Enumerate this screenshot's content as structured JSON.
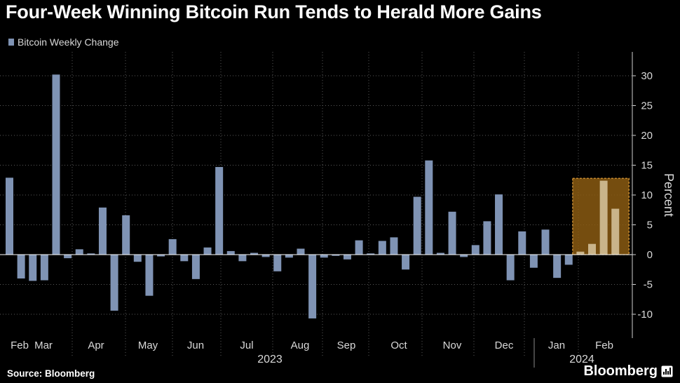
{
  "header": {
    "title": "Four-Week Winning Bitcoin Run Tends to Herald More Gains"
  },
  "footer": {
    "source": "Source: Bloomberg",
    "brand": "Bloomberg"
  },
  "colors": {
    "bar": "#7f93b4",
    "highlight_bar": "#c9b48a",
    "highlight_fill": "#8a5a12",
    "highlight_border": "#e8a23a"
  },
  "chart_data": {
    "type": "bar",
    "title": "Four-Week Winning Bitcoin Run Tends to Herald More Gains",
    "ylabel": "Percent",
    "ylim": [
      -14,
      34
    ],
    "yticks": [
      30,
      25,
      20,
      15,
      10,
      5,
      0,
      -5,
      -10
    ],
    "y_axis_side": "right",
    "grid": true,
    "legend": {
      "placement": "top-left",
      "entries": [
        "Bitcoin Weekly Change"
      ]
    },
    "series": [
      {
        "name": "Bitcoin Weekly Change",
        "values": [
          12.9,
          -4.0,
          -4.4,
          -4.3,
          30.2,
          -0.6,
          0.9,
          0.2,
          7.9,
          -9.4,
          6.6,
          -1.2,
          -6.9,
          -0.3,
          2.6,
          -1.1,
          -4.1,
          1.2,
          14.7,
          0.6,
          -1.1,
          0.3,
          -0.4,
          -2.8,
          -0.5,
          1.0,
          -10.7,
          -0.5,
          -0.2,
          -0.8,
          2.4,
          0.2,
          2.3,
          2.9,
          -2.5,
          9.7,
          15.8,
          0.3,
          7.2,
          -0.4,
          1.6,
          5.6,
          10.1,
          -4.3,
          3.9,
          -2.2,
          4.2,
          -3.9,
          -1.7,
          0.5,
          1.8,
          12.4,
          7.7
        ]
      }
    ],
    "highlight": {
      "start_index": 49,
      "end_index": 52,
      "description": "Four-week winning run"
    },
    "x_axis": {
      "month_labels": [
        "Feb",
        "Mar",
        "Apr",
        "May",
        "Jun",
        "Jul",
        "Aug",
        "Sep",
        "Oct",
        "Nov",
        "Dec",
        "Jan",
        "Feb"
      ],
      "years": [
        "2023",
        "2024"
      ]
    }
  }
}
